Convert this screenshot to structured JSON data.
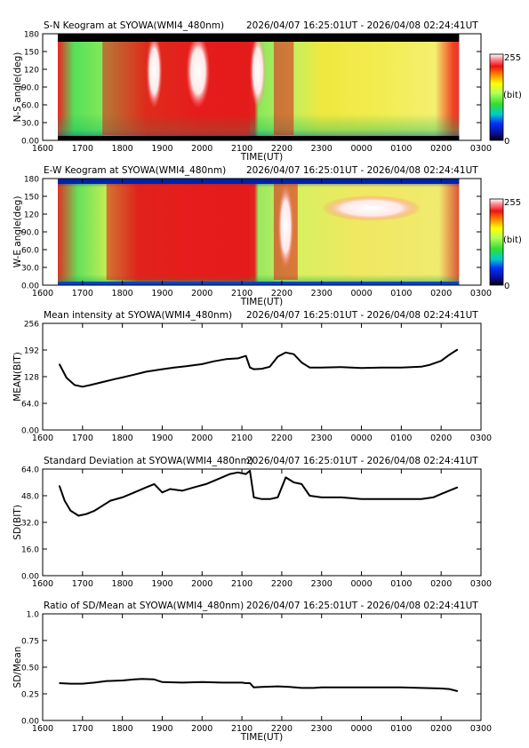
{
  "chart_data": [
    {
      "type": "heatmap",
      "title": "S-N Keogram at SYOWA(WMI4_480nm)",
      "time_range": "2026/04/07 16:25:01UT - 2026/04/08 02:24:41UT",
      "xlabel": "TIME(UT)",
      "ylabel": "N-S angle(deg)",
      "x_ticks": [
        "1600",
        "1700",
        "1800",
        "1900",
        "2000",
        "2100",
        "2200",
        "2300",
        "0000",
        "0100",
        "0200",
        "0300"
      ],
      "y_ticks": [
        "0.00",
        "30.0",
        "60.0",
        "90.0",
        "120",
        "150",
        "180"
      ],
      "ylim": [
        0,
        180
      ],
      "colorbar": {
        "min_label": "0",
        "max_label": "255",
        "unit_label": "(bit)"
      },
      "red_bands": [
        [
          17.5,
          21.2
        ],
        [
          21.8,
          22.3
        ]
      ],
      "white_patches": [
        [
          18.6,
          19.0
        ],
        [
          19.6,
          20.2
        ],
        [
          21.2,
          21.6
        ]
      ]
    },
    {
      "type": "heatmap",
      "title": "E-W Keogram at SYOWA(WMI4_480nm)",
      "time_range": "2026/04/07 16:25:01UT - 2026/04/08 02:24:41UT",
      "xlabel": "TIME(UT)",
      "ylabel": "W-E angle(deg)",
      "x_ticks": [
        "1600",
        "1700",
        "1800",
        "1900",
        "2000",
        "2100",
        "2200",
        "2300",
        "0000",
        "0100",
        "0200",
        "0300"
      ],
      "y_ticks": [
        "0.00",
        "30.0",
        "60.0",
        "90.0",
        "120",
        "150",
        "180"
      ],
      "ylim": [
        0,
        180
      ],
      "colorbar": {
        "min_label": "0",
        "max_label": "255",
        "unit_label": "(bit)"
      },
      "red_bands": [
        [
          17.6,
          21.2
        ],
        [
          21.8,
          22.4
        ]
      ],
      "white_patches": [
        [
          21.9,
          22.3
        ],
        [
          23.0,
          25.5
        ]
      ]
    },
    {
      "type": "line",
      "title": "Mean intensity at SYOWA(WMI4_480nm)",
      "time_range": "2026/04/07 16:25:01UT - 2026/04/08 02:24:41UT",
      "xlabel": "",
      "ylabel": "MEAN(BIT)",
      "x_ticks": [
        "1600",
        "1700",
        "1800",
        "1900",
        "2000",
        "2100",
        "2200",
        "2300",
        "0000",
        "0100",
        "0200",
        "0300"
      ],
      "y_ticks": [
        "0.00",
        "64.0",
        "128",
        "192",
        "256"
      ],
      "xlim": [
        16,
        27
      ],
      "ylim": [
        0,
        256
      ],
      "x": [
        16.42,
        16.6,
        16.8,
        17.0,
        17.2,
        17.5,
        17.8,
        18.0,
        18.3,
        18.6,
        19.0,
        19.3,
        19.6,
        20.0,
        20.3,
        20.6,
        20.9,
        21.1,
        21.2,
        21.3,
        21.5,
        21.7,
        21.9,
        22.1,
        22.3,
        22.5,
        22.7,
        23.0,
        23.5,
        24.0,
        24.5,
        25.0,
        25.5,
        25.7,
        26.0,
        26.2,
        26.41
      ],
      "values": [
        158,
        125,
        108,
        104,
        108,
        115,
        122,
        126,
        133,
        140,
        146,
        150,
        153,
        158,
        165,
        170,
        172,
        178,
        150,
        146,
        147,
        152,
        176,
        186,
        182,
        162,
        150,
        150,
        151,
        149,
        150,
        150,
        152,
        156,
        166,
        180,
        193
      ]
    },
    {
      "type": "line",
      "title": "Standard Deviation at SYOWA(WMI4_480nm)",
      "time_range": "2026/04/07 16:25:01UT - 2026/04/08 02:24:41UT",
      "xlabel": "",
      "ylabel": "SD(BIT)",
      "x_ticks": [
        "1600",
        "1700",
        "1800",
        "1900",
        "2000",
        "2100",
        "2200",
        "2300",
        "0000",
        "0100",
        "0200",
        "0300"
      ],
      "y_ticks": [
        "0.00",
        "16.0",
        "32.0",
        "48.0",
        "64.0"
      ],
      "xlim": [
        16,
        27
      ],
      "ylim": [
        0,
        64
      ],
      "x": [
        16.42,
        16.55,
        16.7,
        16.9,
        17.1,
        17.3,
        17.5,
        17.7,
        18.0,
        18.3,
        18.6,
        18.8,
        19.0,
        19.2,
        19.5,
        19.8,
        20.1,
        20.4,
        20.7,
        20.9,
        21.1,
        21.2,
        21.3,
        21.5,
        21.7,
        21.9,
        22.1,
        22.3,
        22.5,
        22.7,
        23.0,
        23.5,
        24.0,
        24.5,
        25.0,
        25.5,
        25.8,
        26.0,
        26.2,
        26.41
      ],
      "values": [
        54,
        45,
        39,
        36,
        37,
        39,
        42,
        45,
        47,
        50,
        53,
        55,
        50,
        52,
        51,
        53,
        55,
        58,
        61,
        62,
        61,
        63,
        47,
        46,
        46,
        47,
        59,
        56,
        55,
        48,
        47,
        47,
        46,
        46,
        46,
        46,
        47,
        49,
        51,
        53
      ]
    },
    {
      "type": "line",
      "title": "Ratio of SD/Mean at SYOWA(WMI4_480nm)",
      "time_range": "2026/04/07 16:25:01UT - 2026/04/08 02:24:41UT",
      "xlabel": "TIME(UT)",
      "ylabel": "SD/Mean",
      "x_ticks": [
        "1600",
        "1700",
        "1800",
        "1900",
        "2000",
        "2100",
        "2200",
        "2300",
        "0000",
        "0100",
        "0200",
        "0300"
      ],
      "y_ticks": [
        "0.00",
        "0.25",
        "0.50",
        "0.75",
        "1.0"
      ],
      "xlim": [
        16,
        27
      ],
      "ylim": [
        0,
        1
      ],
      "x": [
        16.42,
        16.7,
        17.0,
        17.3,
        17.6,
        18.0,
        18.3,
        18.5,
        18.8,
        19.0,
        19.5,
        20.0,
        20.5,
        21.0,
        21.1,
        21.2,
        21.3,
        21.5,
        21.9,
        22.2,
        22.5,
        22.8,
        23.0,
        23.5,
        24.0,
        24.5,
        25.0,
        25.5,
        26.0,
        26.2,
        26.41
      ],
      "values": [
        0.35,
        0.345,
        0.345,
        0.355,
        0.37,
        0.375,
        0.385,
        0.39,
        0.385,
        0.36,
        0.355,
        0.36,
        0.355,
        0.355,
        0.35,
        0.35,
        0.31,
        0.315,
        0.32,
        0.315,
        0.305,
        0.305,
        0.31,
        0.31,
        0.31,
        0.31,
        0.31,
        0.305,
        0.3,
        0.295,
        0.275
      ]
    }
  ]
}
